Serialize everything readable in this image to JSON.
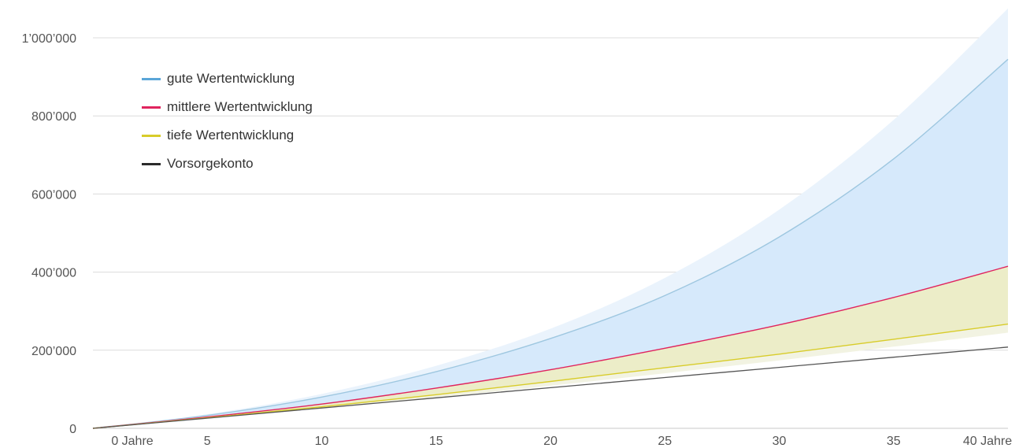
{
  "chart_data": {
    "type": "area",
    "x": [
      0,
      5,
      10,
      15,
      20,
      25,
      30,
      35,
      40
    ],
    "x_tick_labels": [
      "0 Jahre",
      "5",
      "10",
      "15",
      "20",
      "25",
      "30",
      "35",
      "40 Jahre"
    ],
    "ylim": [
      0,
      1000000
    ],
    "y_ticks": [
      0,
      200000,
      400000,
      600000,
      800000,
      1000000
    ],
    "y_tick_labels": [
      "0",
      "200’000",
      "400’000",
      "600’000",
      "800’000",
      "1’000’000"
    ],
    "legend_position": "top-left",
    "grid": true,
    "series": [
      {
        "name": "gute Wertentwicklung",
        "color": "#5aa6d8",
        "values": [
          0,
          33000,
          80000,
          145000,
          230000,
          340000,
          490000,
          690000,
          945000
        ]
      },
      {
        "name": "mittlere Wertentwicklung",
        "color": "#e0245e",
        "values": [
          0,
          29000,
          62000,
          103000,
          150000,
          205000,
          265000,
          335000,
          415000
        ]
      },
      {
        "name": "tiefe Wertentwicklung",
        "color": "#d8cc2a",
        "values": [
          0,
          27000,
          55000,
          86000,
          120000,
          155000,
          190000,
          228000,
          267000
        ]
      },
      {
        "name": "Vorsorgekonto",
        "color": "#2b2b2b",
        "values": [
          0,
          26000,
          52000,
          78000,
          104000,
          130000,
          156000,
          182000,
          208000
        ]
      }
    ],
    "bands": [
      {
        "upper": [
          0,
          36000,
          88000,
          160000,
          255000,
          385000,
          560000,
          790000,
          1075000
        ],
        "color": "#eaf3fc"
      },
      {
        "upper": [
          0,
          27500,
          56500,
          89000,
          125000,
          163000,
          202000,
          242000,
          283000
        ],
        "lower": [
          0,
          25500,
          51000,
          79000,
          109000,
          141000,
          174000,
          209000,
          245000
        ],
        "color": "#f2f3e2"
      }
    ]
  }
}
